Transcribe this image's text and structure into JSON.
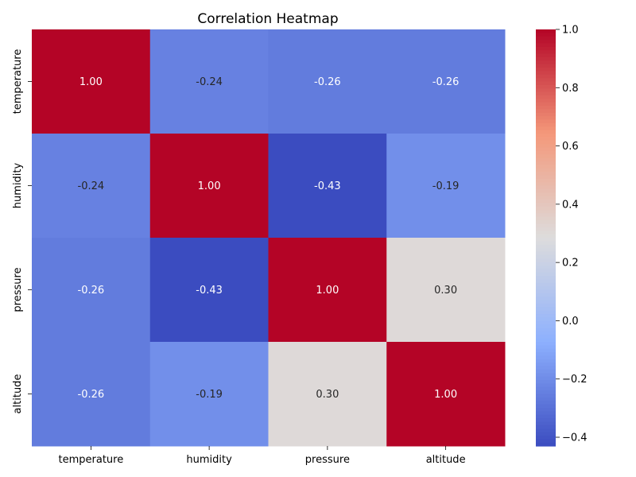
{
  "chart_data": {
    "type": "heatmap",
    "title": "Correlation Heatmap",
    "x_labels": [
      "temperature",
      "humidity",
      "pressure",
      "altitude"
    ],
    "y_labels": [
      "temperature",
      "humidity",
      "pressure",
      "altitude"
    ],
    "values": [
      [
        1.0,
        -0.24,
        -0.26,
        -0.26
      ],
      [
        -0.24,
        1.0,
        -0.43,
        -0.19
      ],
      [
        -0.26,
        -0.43,
        1.0,
        0.3
      ],
      [
        -0.26,
        -0.19,
        0.3,
        1.0
      ]
    ],
    "annotation_format": "0.00",
    "colormap": "coolwarm",
    "colors": {
      "low": "#3b4cc0",
      "mid": "#dddcdc",
      "high": "#b40426"
    },
    "colorbar": {
      "range": [
        -0.43,
        1.0
      ],
      "ticks": [
        -0.4,
        -0.2,
        0.0,
        0.2,
        0.4,
        0.6,
        0.8,
        1.0
      ],
      "tick_labels": [
        "−0.4",
        "−0.2",
        "0.0",
        "0.2",
        "0.4",
        "0.6",
        "0.8",
        "1.0"
      ]
    }
  }
}
